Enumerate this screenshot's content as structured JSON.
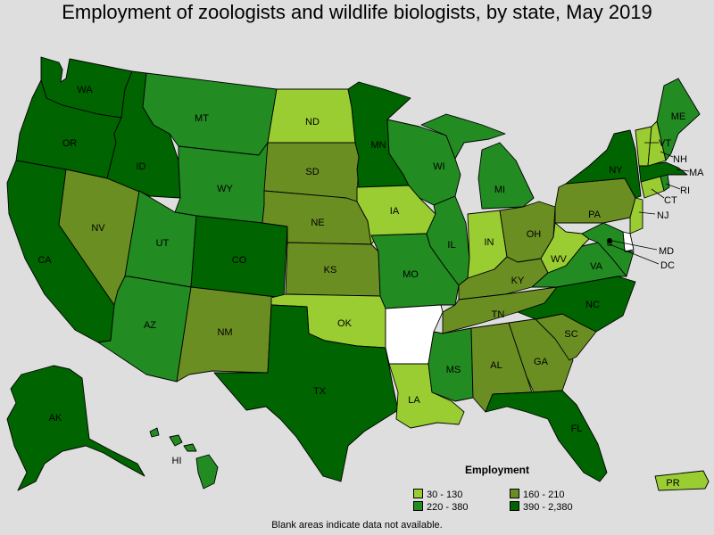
{
  "title": "Employment of zoologists and wildlife biologists, by state, May 2019",
  "footnote": "Blank areas indicate data not available.",
  "colors": {
    "c1": "#9acd32",
    "c2": "#228b22",
    "c3": "#6b8e23",
    "c4": "#006400",
    "na": "#ffffff"
  },
  "legend": {
    "title": "Employment",
    "items": [
      {
        "label": "30 - 130",
        "class": "c1"
      },
      {
        "label": "160 - 210",
        "class": "c3"
      },
      {
        "label": "220 - 380",
        "class": "c2"
      },
      {
        "label": "390 - 2,380",
        "class": "c4"
      }
    ]
  },
  "states": {
    "WA": {
      "label": "WA",
      "class": "c4"
    },
    "OR": {
      "label": "OR",
      "class": "c4"
    },
    "CA": {
      "label": "CA",
      "class": "c4"
    },
    "ID": {
      "label": "ID",
      "class": "c4"
    },
    "NV": {
      "label": "NV",
      "class": "c3"
    },
    "MT": {
      "label": "MT",
      "class": "c2"
    },
    "WY": {
      "label": "WY",
      "class": "c2"
    },
    "UT": {
      "label": "UT",
      "class": "c2"
    },
    "AZ": {
      "label": "AZ",
      "class": "c2"
    },
    "CO": {
      "label": "CO",
      "class": "c4"
    },
    "NM": {
      "label": "NM",
      "class": "c3"
    },
    "ND": {
      "label": "ND",
      "class": "c1"
    },
    "SD": {
      "label": "SD",
      "class": "c3"
    },
    "NE": {
      "label": "NE",
      "class": "c3"
    },
    "KS": {
      "label": "KS",
      "class": "c3"
    },
    "OK": {
      "label": "OK",
      "class": "c1"
    },
    "TX": {
      "label": "TX",
      "class": "c4"
    },
    "MN": {
      "label": "MN",
      "class": "c4"
    },
    "IA": {
      "label": "IA",
      "class": "c1"
    },
    "MO": {
      "label": "MO",
      "class": "c2"
    },
    "AR": {
      "label": "",
      "class": "na"
    },
    "LA": {
      "label": "LA",
      "class": "c1"
    },
    "WI": {
      "label": "WI",
      "class": "c2"
    },
    "IL": {
      "label": "IL",
      "class": "c2"
    },
    "MI": {
      "label": "MI",
      "class": "c2"
    },
    "IN": {
      "label": "IN",
      "class": "c1"
    },
    "OH": {
      "label": "OH",
      "class": "c3"
    },
    "KY": {
      "label": "KY",
      "class": "c3"
    },
    "TN": {
      "label": "TN",
      "class": "c3"
    },
    "MS": {
      "label": "MS",
      "class": "c2"
    },
    "AL": {
      "label": "AL",
      "class": "c3"
    },
    "GA": {
      "label": "GA",
      "class": "c3"
    },
    "FL": {
      "label": "FL",
      "class": "c4"
    },
    "SC": {
      "label": "SC",
      "class": "c3"
    },
    "NC": {
      "label": "NC",
      "class": "c4"
    },
    "VA": {
      "label": "VA",
      "class": "c2"
    },
    "WV": {
      "label": "WV",
      "class": "c1"
    },
    "PA": {
      "label": "PA",
      "class": "c3"
    },
    "NY": {
      "label": "NY",
      "class": "c4"
    },
    "ME": {
      "label": "ME",
      "class": "c2"
    },
    "VT": {
      "label": "VT",
      "class": "c1"
    },
    "NH": {
      "label": "NH",
      "class": "c1"
    },
    "MA": {
      "label": "MA",
      "class": "c4"
    },
    "RI": {
      "label": "RI",
      "class": "c2"
    },
    "CT": {
      "label": "CT",
      "class": "c1"
    },
    "NJ": {
      "label": "NJ",
      "class": "c1"
    },
    "DE": {
      "label": "",
      "class": "na"
    },
    "MD": {
      "label": "MD",
      "class": "c2"
    },
    "DC": {
      "label": "DC",
      "class": "c2"
    },
    "AK": {
      "label": "AK",
      "class": "c4"
    },
    "HI": {
      "label": "HI",
      "class": "c2"
    },
    "PR": {
      "label": "PR",
      "class": "c1"
    }
  }
}
